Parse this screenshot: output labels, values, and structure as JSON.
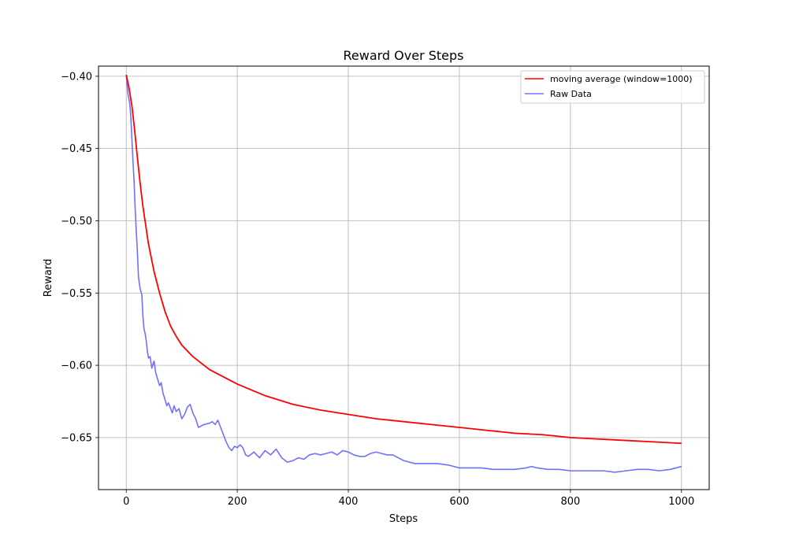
{
  "chart_data": {
    "type": "line",
    "title": "Reward Over Steps",
    "xlabel": "Steps",
    "ylabel": "Reward",
    "xlim": [
      -50,
      1050
    ],
    "ylim": [
      -0.686,
      -0.393
    ],
    "xticks": [
      0,
      200,
      400,
      600,
      800,
      1000
    ],
    "xtick_labels": [
      "0",
      "200",
      "400",
      "600",
      "800",
      "1000"
    ],
    "yticks": [
      -0.4,
      -0.45,
      -0.5,
      -0.55,
      -0.6,
      -0.65
    ],
    "ytick_labels": [
      "−0.40",
      "−0.45",
      "−0.50",
      "−0.55",
      "−0.60",
      "−0.65"
    ],
    "grid": true,
    "legend_position": "upper-right",
    "series": [
      {
        "name": "moving average (window=1000)",
        "color": "#ff0000",
        "x": [
          0,
          5,
          10,
          15,
          20,
          25,
          30,
          40,
          50,
          60,
          70,
          80,
          90,
          100,
          110,
          120,
          130,
          140,
          150,
          170,
          200,
          250,
          300,
          350,
          400,
          450,
          500,
          550,
          600,
          650,
          700,
          750,
          800,
          850,
          900,
          950,
          1000
        ],
        "y": [
          -0.399,
          -0.408,
          -0.42,
          -0.437,
          -0.456,
          -0.474,
          -0.49,
          -0.516,
          -0.535,
          -0.55,
          -0.563,
          -0.573,
          -0.58,
          -0.586,
          -0.59,
          -0.594,
          -0.597,
          -0.6,
          -0.603,
          -0.607,
          -0.613,
          -0.621,
          -0.627,
          -0.631,
          -0.634,
          -0.637,
          -0.639,
          -0.641,
          -0.643,
          -0.645,
          -0.647,
          -0.648,
          -0.65,
          -0.651,
          -0.652,
          -0.653,
          -0.654
        ]
      },
      {
        "name": "Raw Data",
        "color": "#7070ff",
        "x": [
          0,
          3,
          6,
          8,
          10,
          12,
          14,
          16,
          18,
          20,
          22,
          25,
          28,
          30,
          32,
          34,
          36,
          38,
          40,
          43,
          46,
          50,
          53,
          56,
          60,
          63,
          66,
          70,
          73,
          76,
          80,
          83,
          86,
          90,
          95,
          100,
          105,
          110,
          115,
          120,
          125,
          130,
          135,
          140,
          150,
          155,
          160,
          165,
          170,
          175,
          180,
          185,
          190,
          195,
          200,
          205,
          210,
          215,
          220,
          230,
          240,
          250,
          260,
          270,
          280,
          290,
          300,
          310,
          320,
          330,
          340,
          350,
          360,
          370,
          380,
          390,
          400,
          410,
          420,
          430,
          440,
          450,
          460,
          470,
          480,
          490,
          500,
          520,
          540,
          560,
          580,
          600,
          620,
          640,
          660,
          680,
          700,
          720,
          730,
          740,
          760,
          780,
          800,
          820,
          840,
          860,
          880,
          900,
          920,
          940,
          960,
          980,
          990,
          1000
        ],
        "y": [
          -0.399,
          -0.412,
          -0.418,
          -0.427,
          -0.442,
          -0.458,
          -0.472,
          -0.491,
          -0.507,
          -0.521,
          -0.539,
          -0.547,
          -0.551,
          -0.566,
          -0.575,
          -0.578,
          -0.583,
          -0.59,
          -0.595,
          -0.594,
          -0.602,
          -0.597,
          -0.605,
          -0.609,
          -0.614,
          -0.612,
          -0.619,
          -0.624,
          -0.628,
          -0.626,
          -0.63,
          -0.633,
          -0.628,
          -0.632,
          -0.63,
          -0.637,
          -0.634,
          -0.629,
          -0.627,
          -0.633,
          -0.637,
          -0.643,
          -0.642,
          -0.641,
          -0.64,
          -0.639,
          -0.641,
          -0.638,
          -0.643,
          -0.648,
          -0.653,
          -0.657,
          -0.659,
          -0.656,
          -0.657,
          -0.655,
          -0.657,
          -0.662,
          -0.663,
          -0.66,
          -0.664,
          -0.659,
          -0.662,
          -0.658,
          -0.664,
          -0.667,
          -0.666,
          -0.664,
          -0.665,
          -0.662,
          -0.661,
          -0.662,
          -0.661,
          -0.66,
          -0.662,
          -0.659,
          -0.66,
          -0.662,
          -0.663,
          -0.663,
          -0.661,
          -0.66,
          -0.661,
          -0.662,
          -0.662,
          -0.664,
          -0.666,
          -0.668,
          -0.668,
          -0.668,
          -0.669,
          -0.671,
          -0.671,
          -0.671,
          -0.672,
          -0.672,
          -0.672,
          -0.671,
          -0.67,
          -0.671,
          -0.672,
          -0.672,
          -0.673,
          -0.673,
          -0.673,
          -0.673,
          -0.674,
          -0.673,
          -0.672,
          -0.672,
          -0.673,
          -0.672,
          -0.671,
          -0.67
        ]
      }
    ]
  }
}
